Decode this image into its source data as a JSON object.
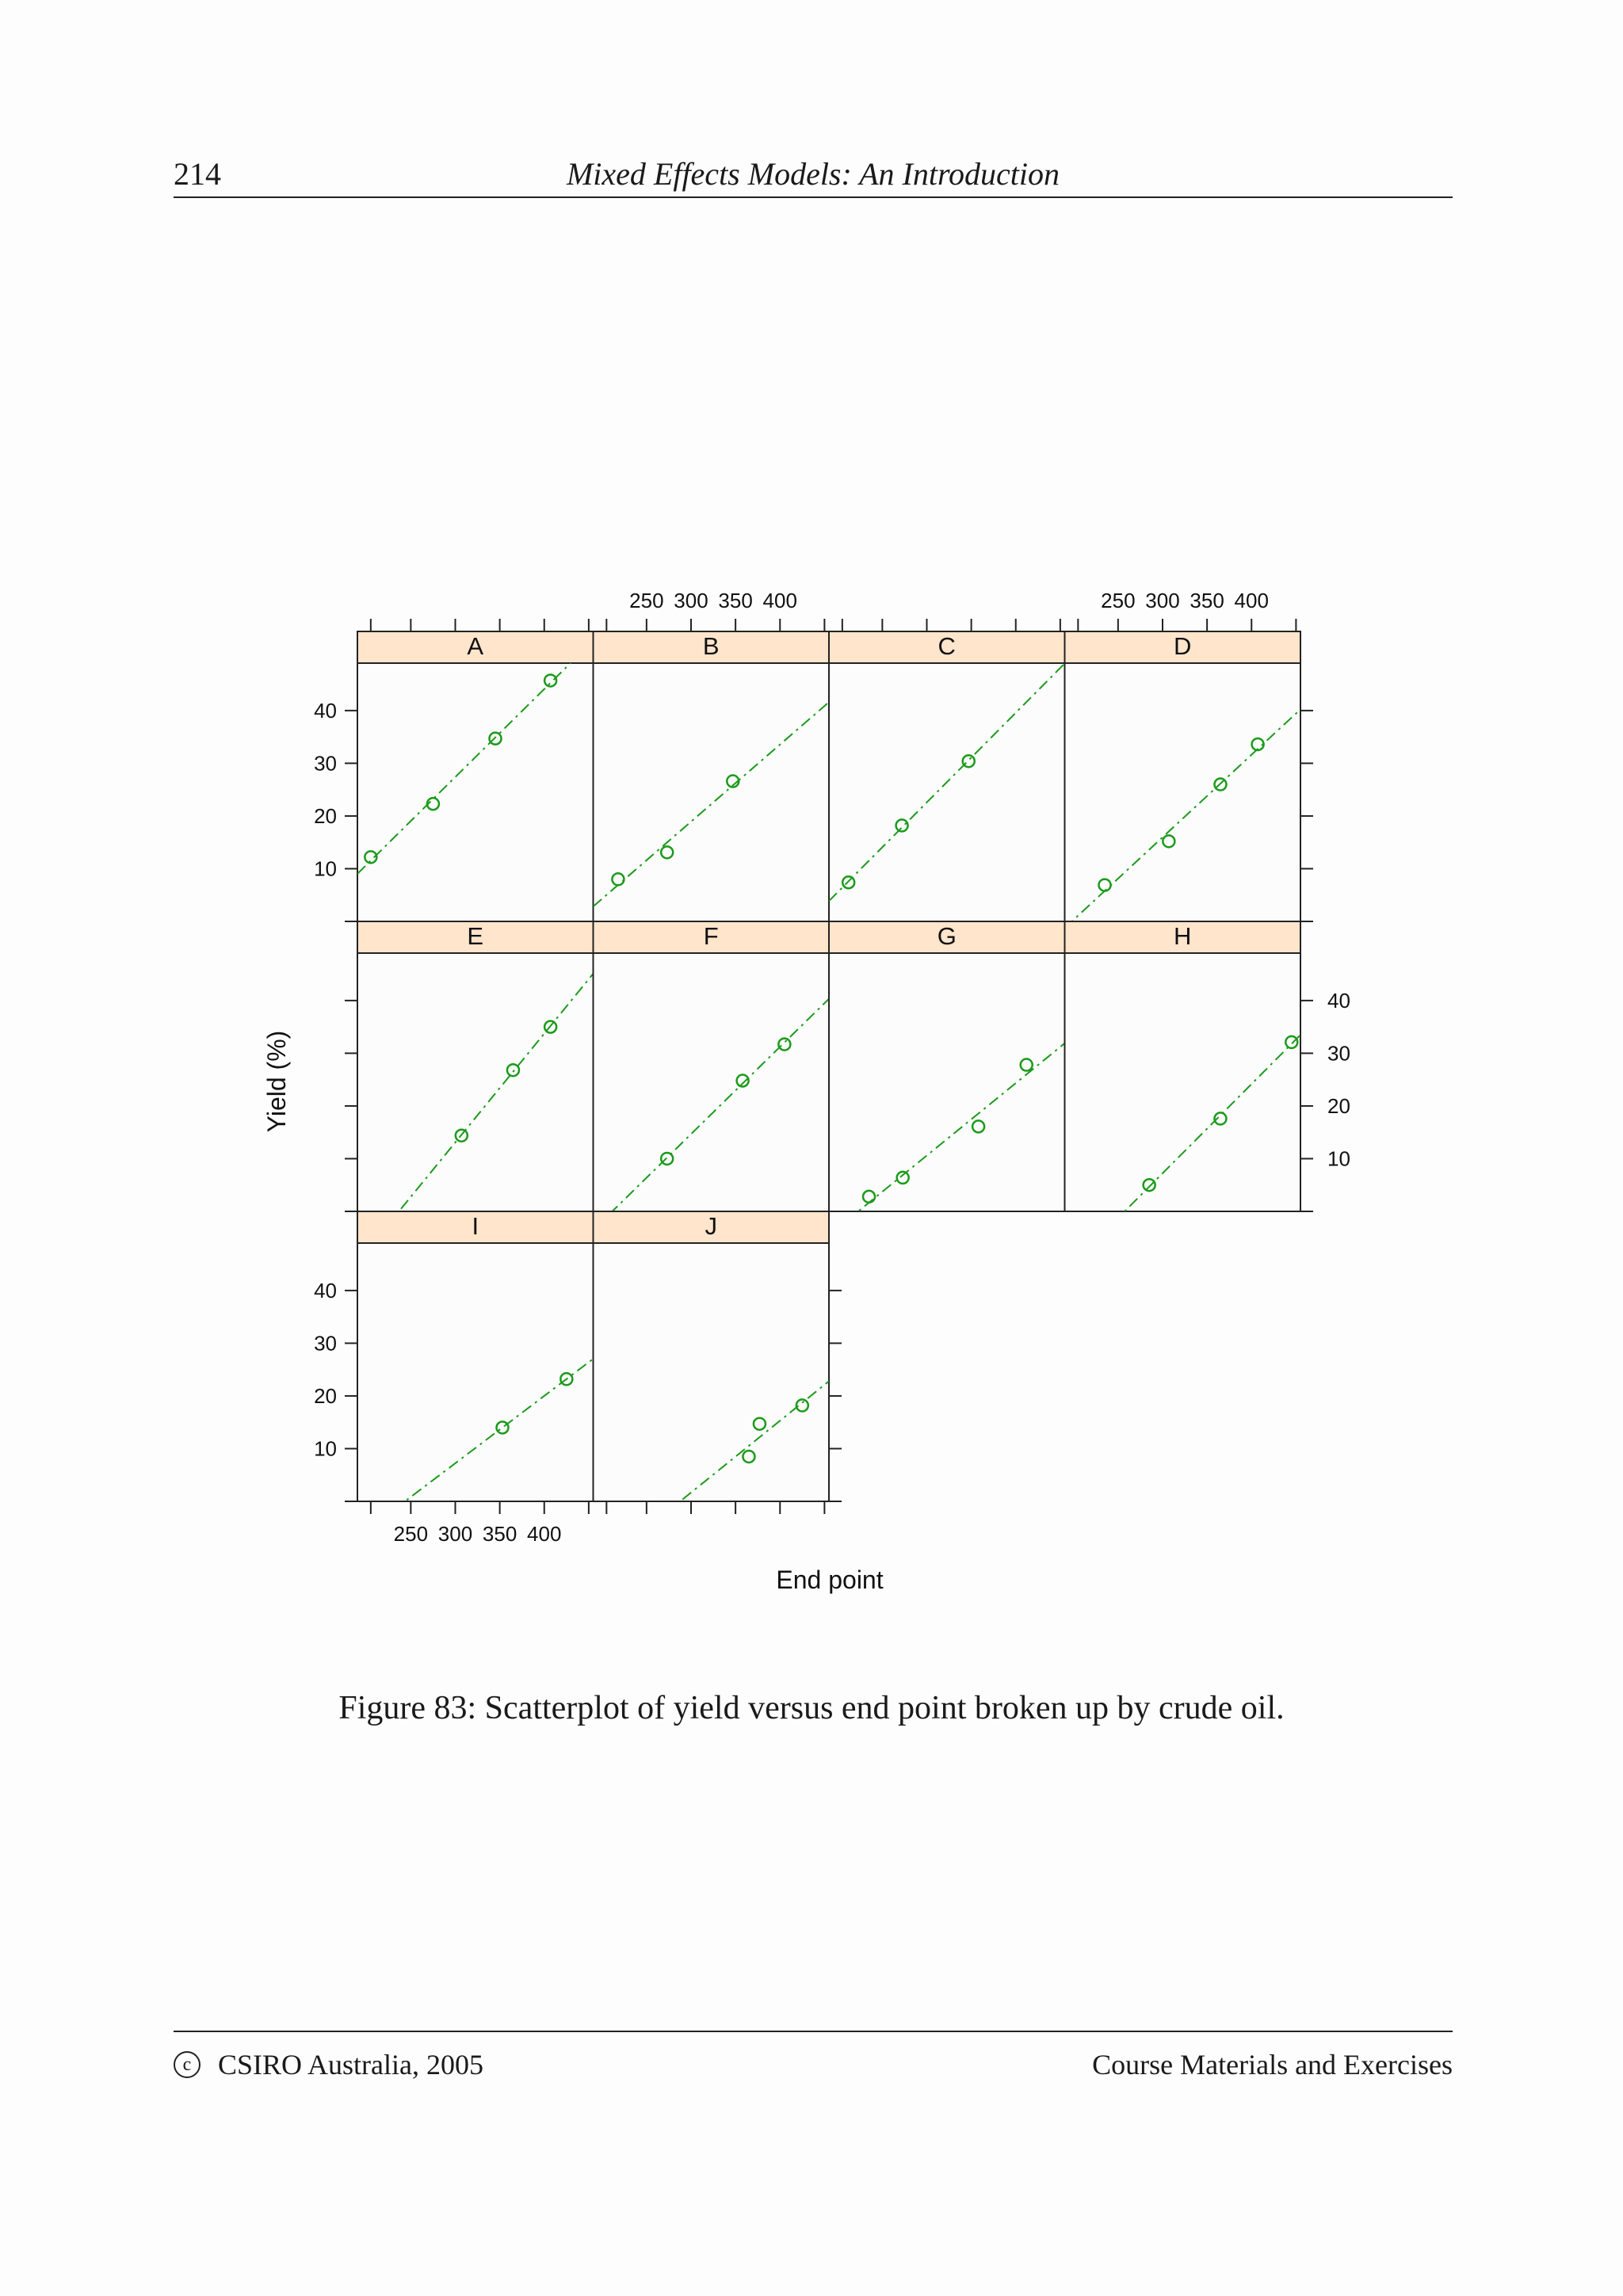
{
  "page": {
    "number": "214",
    "running_title": "Mixed Effects Models: An Introduction",
    "caption": "Figure 83: Scatterplot of yield versus end point broken up by crude oil.",
    "footer_left": "CSIRO Australia, 2005",
    "footer_right": "Course Materials and Exercises"
  },
  "colors": {
    "strip": "#ffe5cc",
    "series": "#1a9a1a",
    "frame": "#222222"
  },
  "chart_data": {
    "type": "scatter",
    "layout": "trellis",
    "xlabel": "End point",
    "ylabel": "Yield (%)",
    "xlim": [
      190,
      455
    ],
    "ylim": [
      0,
      49
    ],
    "xticks": [
      250,
      300,
      350,
      400
    ],
    "yticks": [
      10,
      20,
      30,
      40
    ],
    "grid": false,
    "fit_line": "dash-dot regression line per panel",
    "panels": [
      {
        "name": "A",
        "x": [
          205,
          275,
          345,
          407
        ],
        "y": [
          12.2,
          22.3,
          34.7,
          45.7
        ]
      },
      {
        "name": "B",
        "x": [
          218,
          273,
          347
        ],
        "y": [
          8.0,
          13.1,
          26.6
        ]
      },
      {
        "name": "C",
        "x": [
          212,
          272,
          347
        ],
        "y": [
          7.4,
          18.2,
          30.4
        ]
      },
      {
        "name": "D",
        "x": [
          235,
          307,
          365,
          407
        ],
        "y": [
          6.9,
          15.2,
          26.0,
          33.6
        ]
      },
      {
        "name": "E",
        "x": [
          307,
          365,
          407
        ],
        "y": [
          14.4,
          26.8,
          35.0
        ]
      },
      {
        "name": "F",
        "x": [
          273,
          358,
          405
        ],
        "y": [
          10.0,
          24.8,
          31.7
        ]
      },
      {
        "name": "G",
        "x": [
          235,
          273,
          358,
          412
        ],
        "y": [
          2.8,
          6.4,
          16.1,
          27.8
        ]
      },
      {
        "name": "H",
        "x": [
          285,
          365,
          445
        ],
        "y": [
          5.0,
          17.6,
          32.1
        ]
      },
      {
        "name": "I",
        "x": [
          353,
          425
        ],
        "y": [
          14.0,
          23.2
        ]
      },
      {
        "name": "J",
        "x": [
          365,
          377,
          425
        ],
        "y": [
          8.5,
          14.7,
          18.2
        ]
      }
    ]
  }
}
